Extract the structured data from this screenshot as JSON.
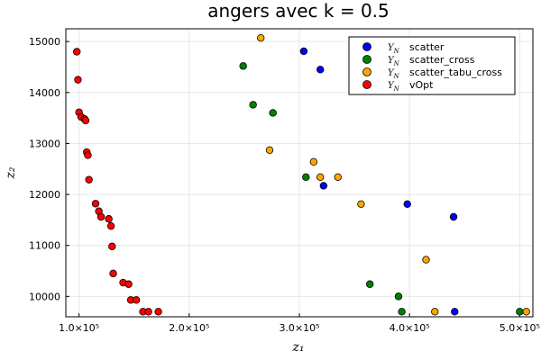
{
  "chart_data": {
    "type": "scatter",
    "title": "angers avec k = 0.5",
    "xlabel": "z₁",
    "ylabel": "z₂",
    "xlim": [
      88000,
      512000
    ],
    "ylim": [
      9600,
      15250
    ],
    "x_ticks": [
      {
        "value": 100000,
        "label": "1.0×10⁵"
      },
      {
        "value": 200000,
        "label": "2.0×10⁵"
      },
      {
        "value": 300000,
        "label": "3.0×10⁵"
      },
      {
        "value": 400000,
        "label": "4.0×10⁵"
      },
      {
        "value": 500000,
        "label": "5.0×10⁵"
      }
    ],
    "y_ticks": [
      {
        "value": 10000,
        "label": "10000"
      },
      {
        "value": 11000,
        "label": "11000"
      },
      {
        "value": 12000,
        "label": "12000"
      },
      {
        "value": 13000,
        "label": "13000"
      },
      {
        "value": 14000,
        "label": "14000"
      },
      {
        "value": 15000,
        "label": "15000"
      }
    ],
    "grid": true,
    "legend_position": "top-right",
    "series": [
      {
        "name": "Y_N scatter",
        "legend_symbol": "Y",
        "legend_sub": "N",
        "legend_text": "scatter",
        "color": "#0000ff",
        "points": [
          [
            304000,
            14810
          ],
          [
            319000,
            14450
          ],
          [
            322000,
            12170
          ],
          [
            398000,
            11810
          ],
          [
            440000,
            11560
          ],
          [
            441000,
            9700
          ]
        ]
      },
      {
        "name": "Y_N scatter_cross",
        "legend_symbol": "Y",
        "legend_sub": "N",
        "legend_text": "scatter_cross",
        "color": "#008000",
        "points": [
          [
            249000,
            14520
          ],
          [
            258000,
            13760
          ],
          [
            276000,
            13600
          ],
          [
            306000,
            12340
          ],
          [
            364000,
            10240
          ],
          [
            390000,
            10000
          ],
          [
            393000,
            9700
          ],
          [
            500000,
            9700
          ]
        ]
      },
      {
        "name": "Y_N scatter_tabu_cross",
        "legend_symbol": "Y",
        "legend_sub": "N",
        "legend_text": "scatter_tabu_cross",
        "color": "#ffa500",
        "points": [
          [
            265000,
            15070
          ],
          [
            273000,
            12870
          ],
          [
            313000,
            12640
          ],
          [
            319000,
            12340
          ],
          [
            335000,
            12340
          ],
          [
            356000,
            11810
          ],
          [
            415000,
            10720
          ],
          [
            423000,
            9700
          ],
          [
            506000,
            9700
          ]
        ]
      },
      {
        "name": "Y_N vOpt",
        "legend_symbol": "Y",
        "legend_sub": "N",
        "legend_text": "vOpt",
        "color": "#ff0000",
        "points": [
          [
            98000,
            14800
          ],
          [
            99000,
            14250
          ],
          [
            100000,
            13610
          ],
          [
            102000,
            13520
          ],
          [
            105000,
            13480
          ],
          [
            106000,
            13450
          ],
          [
            107000,
            12830
          ],
          [
            108000,
            12770
          ],
          [
            109000,
            12290
          ],
          [
            115000,
            11820
          ],
          [
            118000,
            11670
          ],
          [
            120000,
            11560
          ],
          [
            127000,
            11520
          ],
          [
            129000,
            11380
          ],
          [
            130000,
            10980
          ],
          [
            131000,
            10450
          ],
          [
            140000,
            10270
          ],
          [
            145000,
            10240
          ],
          [
            147000,
            9930
          ],
          [
            152000,
            9930
          ],
          [
            158000,
            9700
          ],
          [
            163000,
            9700
          ],
          [
            172000,
            9700
          ]
        ]
      }
    ]
  }
}
